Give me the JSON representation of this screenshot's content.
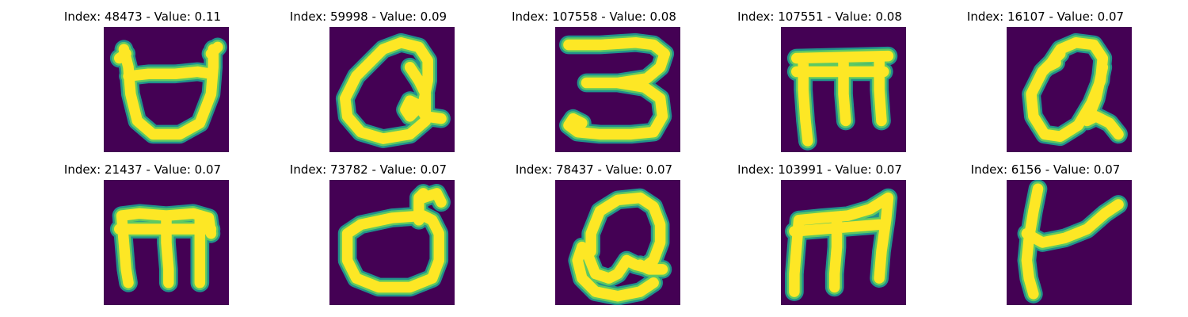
{
  "colors": {
    "background": "#440154",
    "glyph_core": "#fde725",
    "glyph_halo": "#5ec962",
    "glyph_edge": "#21918c"
  },
  "panels": [
    {
      "title": "Index: 48473 - Value: 0.11",
      "glyph": "u-bowl"
    },
    {
      "title": "Index: 59998 - Value: 0.09",
      "glyph": "looped-q"
    },
    {
      "title": "Index: 107558 - Value: 0.08",
      "glyph": "three"
    },
    {
      "title": "Index: 107551 - Value: 0.08",
      "glyph": "m-serif"
    },
    {
      "title": "Index: 16107 - Value: 0.07",
      "glyph": "looped-a"
    },
    {
      "title": "Index: 21437 - Value: 0.07",
      "glyph": "m"
    },
    {
      "title": "Index: 73782 - Value: 0.07",
      "glyph": "d-bowl"
    },
    {
      "title": "Index: 78437 - Value: 0.07",
      "glyph": "looped-g"
    },
    {
      "title": "Index: 103991 - Value: 0.07",
      "glyph": "m-slant"
    },
    {
      "title": "Index: 6156 - Value: 0.07",
      "glyph": "t-hook"
    }
  ]
}
